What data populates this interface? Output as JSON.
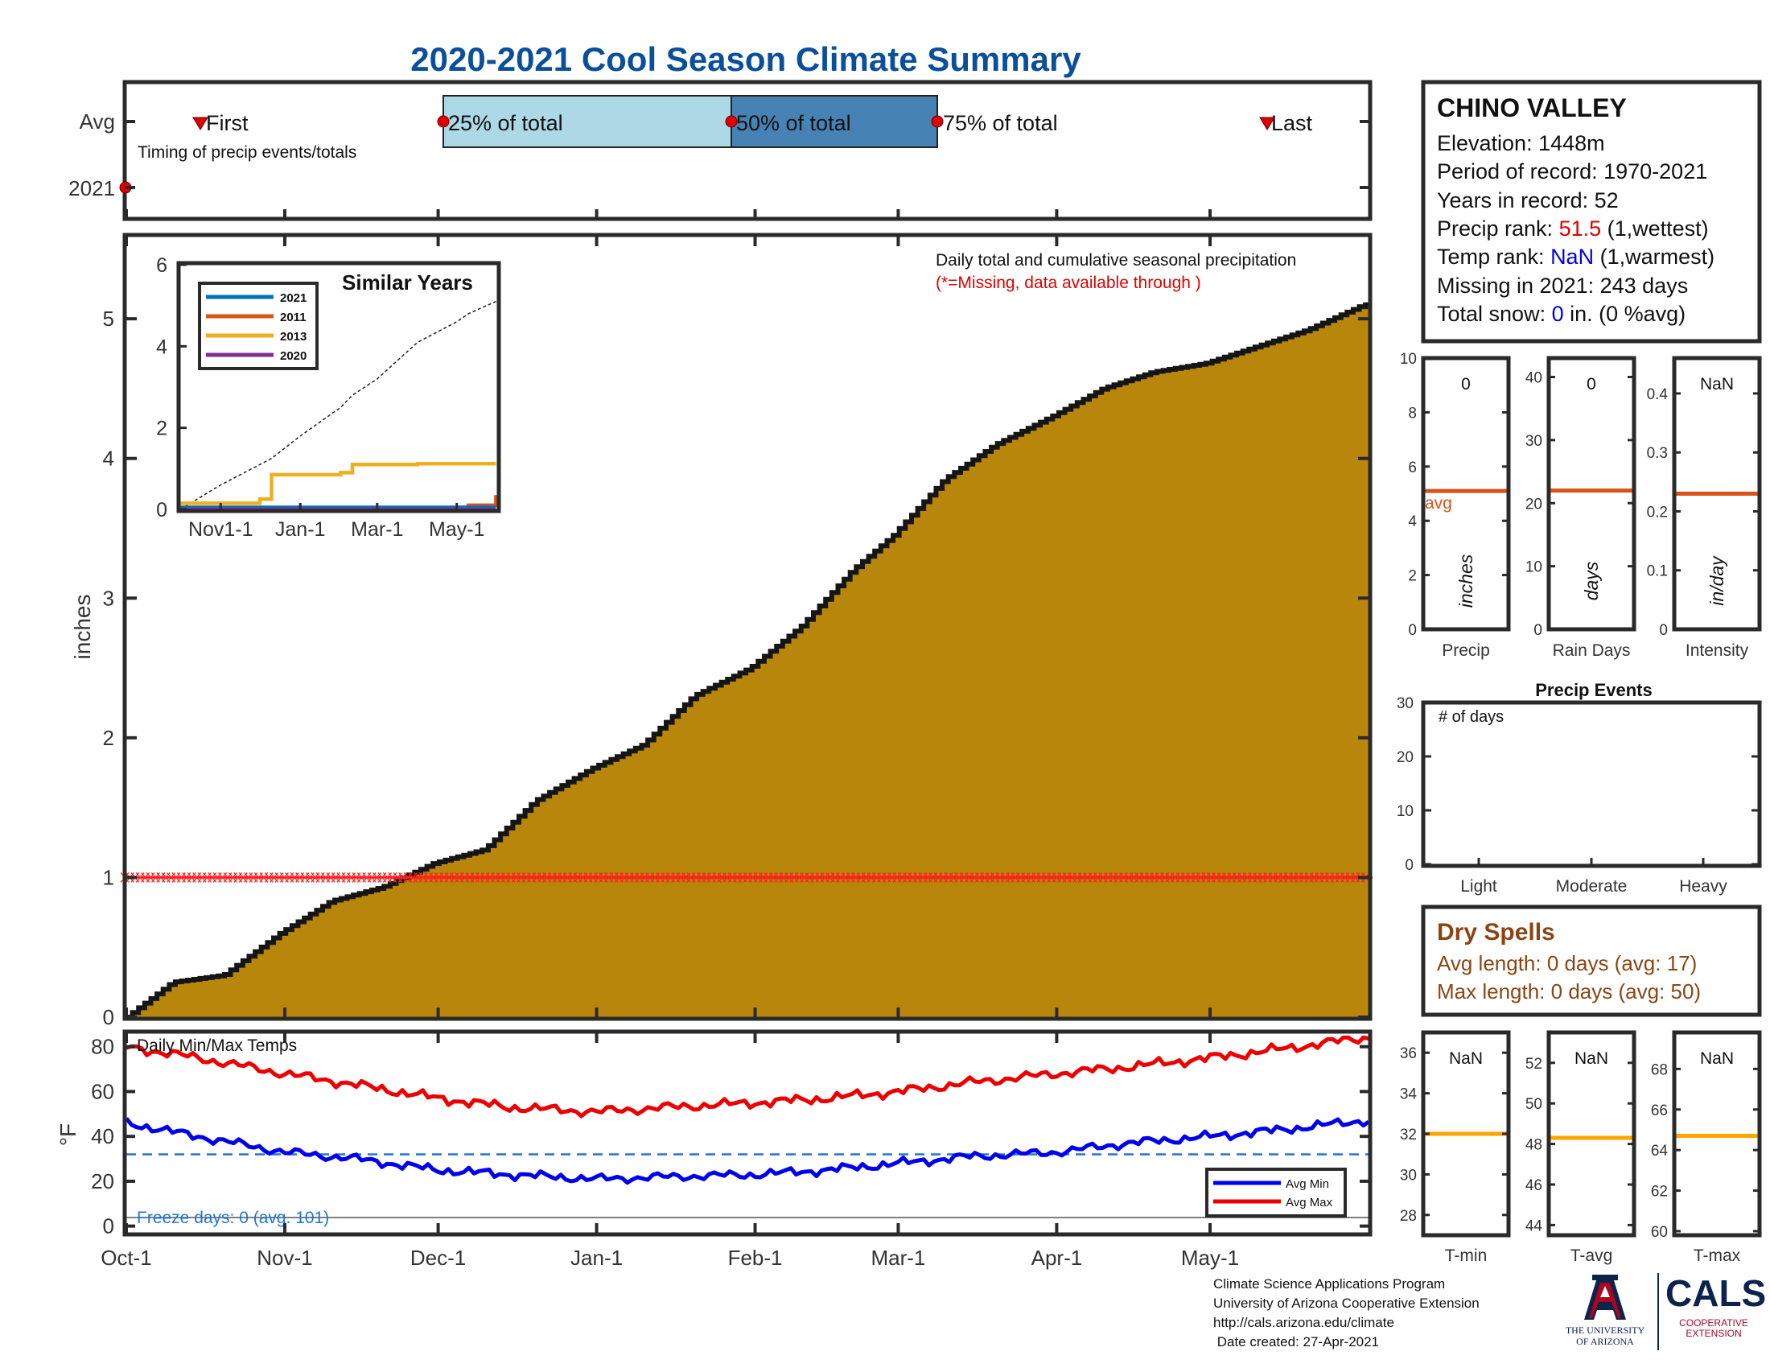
{
  "title": "2020-2021 Cool Season Climate Summary",
  "colors": {
    "title": "#0a4f9c",
    "precip_fill": "#b8860b",
    "timing_light": "#add8e6",
    "timing_dark": "#4682b4",
    "marker_red": "#e00000",
    "avg_line_orange": "#d95319",
    "tmin_blue": "#0000ee",
    "tmax_red": "#ee0000",
    "freeze_line": "#1f77d4",
    "temp_avg_orange": "#ffa500",
    "dry_spell_brown": "#8b4513",
    "rank_red": "#e00000",
    "rank_blue": "#0000ee"
  },
  "timing_panel": {
    "row_labels": [
      "Avg",
      "2021"
    ],
    "first_label": "First",
    "pct25_label": "25% of total",
    "pct50_label": "50% of total",
    "pct75_label": "75% of total",
    "last_label": "Last",
    "caption": "Timing of precip events/totals",
    "avg_markers": {
      "first": "Oct-16",
      "pct25": "Dec-1",
      "pct50": "Jan-27",
      "pct75": "Mar-10",
      "last": "May-25"
    }
  },
  "precip_panel": {
    "ylabel": "inches",
    "caption": "Daily total and cumulative seasonal precipitation",
    "missing_note": "(*=Missing, data available through )",
    "missing_marker_value": 1
  },
  "inset": {
    "title": "Similar Years",
    "legend": [
      "2021",
      "2011",
      "2013",
      "2020"
    ],
    "legend_colors": [
      "#0072bd",
      "#d95319",
      "#edb120",
      "#7e2f8e"
    ],
    "yticks": [
      "0",
      "2",
      "4",
      "6"
    ],
    "xticks": [
      "Nov1-1",
      "Jan-1",
      "Mar-1",
      "May-1"
    ]
  },
  "temp_panel": {
    "caption": "Daily Min/Max Temps",
    "ylabel": "°F",
    "freeze_text": "Freeze days: 0 (avg. 101)",
    "freeze_value": 32,
    "legend": [
      "Avg Min",
      "Avg Max"
    ]
  },
  "x_axis": {
    "labels": [
      "Oct-1",
      "Nov-1",
      "Dec-1",
      "Jan-1",
      "Feb-1",
      "Mar-1",
      "Apr-1",
      "May-1"
    ]
  },
  "info_box": {
    "station": "CHINO VALLEY",
    "elevation": "Elevation: 1448m",
    "period": "Period of record: 1970-2021",
    "years": "Years in record: 52",
    "precip_rank_label": "Precip rank: ",
    "precip_rank_value": "51.5",
    "precip_rank_suffix": " (1,wettest)",
    "temp_rank_label": "Temp rank: ",
    "temp_rank_value": "NaN",
    "temp_rank_suffix": " (1,warmest)",
    "missing": "Missing in 2021: 243 days",
    "snow_label": "Total snow: ",
    "snow_value": "0",
    "snow_suffix": " in. (0 %avg)"
  },
  "mini_bars": [
    {
      "xlabel": "Precip",
      "unit": "inches",
      "value_text": "0",
      "avg": 5.1,
      "ymin": 0,
      "ymax": 10,
      "yticks": [
        0,
        2,
        4,
        6,
        8,
        10
      ],
      "avg_label": "avg"
    },
    {
      "xlabel": "Rain Days",
      "unit": "days",
      "value_text": "0",
      "avg": 22,
      "ymin": 0,
      "ymax": 43,
      "yticks": [
        0,
        10,
        20,
        30,
        40
      ]
    },
    {
      "xlabel": "Intensity",
      "unit": "in/day",
      "value_text": "NaN",
      "avg": 0.23,
      "ymin": 0,
      "ymax": 0.46,
      "yticks": [
        0,
        0.1,
        0.2,
        0.3,
        0.4
      ]
    }
  ],
  "precip_events": {
    "title": "Precip Events",
    "caption": "# of days",
    "categories": [
      "Light",
      "Moderate",
      "Heavy"
    ],
    "values": [
      0,
      0,
      0
    ],
    "yticks": [
      0,
      10,
      20,
      30
    ]
  },
  "dry_spells": {
    "title": "Dry Spells",
    "avg_length": "Avg length: 0 days (avg: 17)",
    "max_length": "Max length: 0 days (avg: 50)"
  },
  "temp_bars": [
    {
      "xlabel": "T-min",
      "value_text": "NaN",
      "avg": 32,
      "ymin": 27,
      "ymax": 37,
      "yticks": [
        28,
        30,
        32,
        34,
        36
      ]
    },
    {
      "xlabel": "T-avg",
      "value_text": "NaN",
      "avg": 48.3,
      "ymin": 43.5,
      "ymax": 53.5,
      "yticks": [
        44,
        46,
        48,
        50,
        52
      ]
    },
    {
      "xlabel": "T-max",
      "value_text": "NaN",
      "avg": 64.7,
      "ymin": 59.8,
      "ymax": 69.8,
      "yticks": [
        60,
        62,
        64,
        66,
        68
      ]
    }
  ],
  "credits": [
    "Climate Science Applications Program",
    "University of Arizona Cooperative Extension",
    "http://cals.arizona.edu/climate",
    " Date created: 27-Apr-2021"
  ],
  "logos": {
    "ua_line1": "THE UNIVERSITY",
    "ua_line2": "OF ARIZONA",
    "cals_word": "CALS",
    "cals_line1": "COOPERATIVE",
    "cals_line2": "EXTENSION"
  },
  "chart_data": [
    {
      "type": "area",
      "title": "Daily total and cumulative seasonal precipitation",
      "ylabel": "inches",
      "ylim": [
        0,
        5.6
      ],
      "yticks": [
        0,
        1,
        2,
        3,
        4,
        5
      ],
      "x": [
        "Oct-1",
        "Oct-10",
        "Oct-20",
        "Oct-31",
        "Nov-10",
        "Nov-20",
        "Nov-30",
        "Dec-10",
        "Dec-20",
        "Dec-31",
        "Jan-10",
        "Jan-20",
        "Jan-31",
        "Feb-10",
        "Feb-20",
        "Feb-28",
        "Mar-10",
        "Mar-20",
        "Mar-31",
        "Apr-10",
        "Apr-20",
        "Apr-30",
        "May-10",
        "May-20",
        "May-31"
      ],
      "series": [
        {
          "values": [
            0.0,
            0.25,
            0.3,
            0.6,
            0.83,
            0.93,
            1.1,
            1.2,
            1.55,
            1.78,
            1.95,
            2.3,
            2.5,
            2.8,
            3.2,
            3.45,
            3.85,
            4.1,
            4.3,
            4.5,
            4.62,
            4.68,
            4.8,
            4.92,
            5.1
          ]
        }
      ],
      "missing_marker_value": 1
    },
    {
      "type": "line",
      "title": "Similar Years",
      "ylim": [
        0,
        6
      ],
      "xlim": [
        "Oct-1",
        "May-31"
      ],
      "x": [
        "Oct-1",
        "Nov-1",
        "Dec-1",
        "Dec-10",
        "Jan-1",
        "Feb-1",
        "Feb-10",
        "Mar-1",
        "Apr-1",
        "May-1",
        "May-10",
        "May-31"
      ],
      "series": [
        {
          "name": "2021",
          "values": [
            0.05,
            0.05,
            0.05,
            0.05,
            0.05,
            0.05,
            0.05,
            0.05,
            0.05,
            0.05,
            0.05,
            0.05
          ]
        },
        {
          "name": "2011",
          "values": [
            0.0,
            0.0,
            0.0,
            0.0,
            0.0,
            0.0,
            0.0,
            0.0,
            0.0,
            0.05,
            0.1,
            0.35
          ]
        },
        {
          "name": "2013",
          "values": [
            0.15,
            0.15,
            0.25,
            0.85,
            0.85,
            0.9,
            1.1,
            1.1,
            1.12,
            1.12,
            1.12,
            1.12
          ]
        },
        {
          "name": "2020",
          "values": [
            0.0,
            0.0,
            0.0,
            0.0,
            0.0,
            0.0,
            0.0,
            0.0,
            0.0,
            0.0,
            0.0,
            0.0
          ]
        },
        {
          "values": [
            0.0,
            0.6,
            1.1,
            1.25,
            1.8,
            2.5,
            2.8,
            3.2,
            4.1,
            4.6,
            4.8,
            5.1
          ]
        }
      ]
    },
    {
      "type": "line",
      "title": "Daily Min/Max Temps",
      "ylabel": "°F",
      "ylim": [
        -3,
        86
      ],
      "yticks": [
        0,
        20,
        40,
        60,
        80
      ],
      "x": [
        "Oct-1",
        "Oct-15",
        "Nov-1",
        "Nov-15",
        "Dec-1",
        "Dec-15",
        "Jan-1",
        "Jan-15",
        "Feb-1",
        "Feb-15",
        "Mar-1",
        "Mar-15",
        "Apr-1",
        "Apr-15",
        "May-1",
        "May-15",
        "May-31"
      ],
      "series": [
        {
          "name": "Avg Min",
          "values": [
            46,
            40,
            33,
            30,
            25,
            23,
            21,
            22,
            23,
            25,
            28,
            31,
            33,
            37,
            40,
            43,
            47
          ]
        },
        {
          "name": "Avg Max",
          "values": [
            80,
            75,
            68,
            63,
            57,
            53,
            51,
            53,
            55,
            57,
            60,
            64,
            68,
            71,
            75,
            79,
            84
          ]
        }
      ],
      "freeze_line": 32
    },
    {
      "type": "bar",
      "title": "Precip Events",
      "categories": [
        "Light",
        "Moderate",
        "Heavy"
      ],
      "values": [
        0,
        0,
        0
      ],
      "ylim": [
        0,
        30
      ]
    }
  ]
}
